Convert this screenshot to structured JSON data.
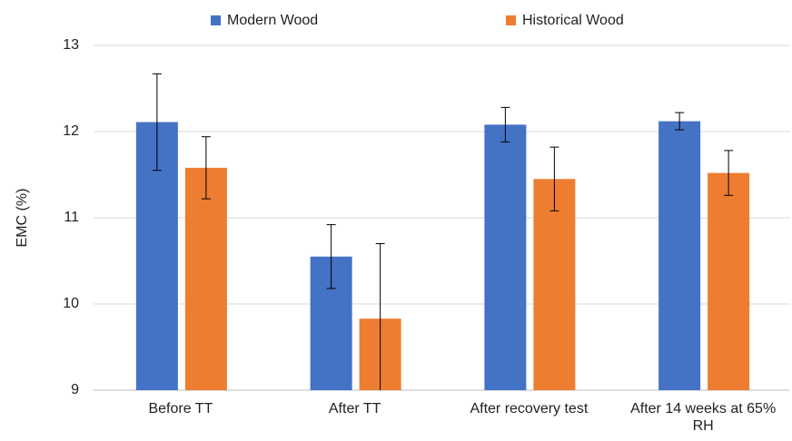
{
  "chart_data": {
    "type": "bar",
    "y_label": "EMC (%)",
    "categories": [
      "Before TT",
      "After TT",
      "After recovery test",
      "After 14 weeks at 65% RH"
    ],
    "series": [
      {
        "name": "Modern Wood",
        "color": "#4472c4",
        "values": [
          12.11,
          10.55,
          12.08,
          12.12
        ],
        "errors": [
          0.56,
          0.37,
          0.2,
          0.1
        ]
      },
      {
        "name": "Historical Wood",
        "color": "#ed7d31",
        "values": [
          11.58,
          9.83,
          11.45,
          11.52
        ],
        "errors": [
          0.36,
          0.87,
          0.37,
          0.26
        ]
      }
    ],
    "ylim": [
      9,
      13
    ],
    "yticks": [
      9,
      10,
      11,
      12,
      13
    ],
    "grid": true,
    "legend": "top"
  }
}
